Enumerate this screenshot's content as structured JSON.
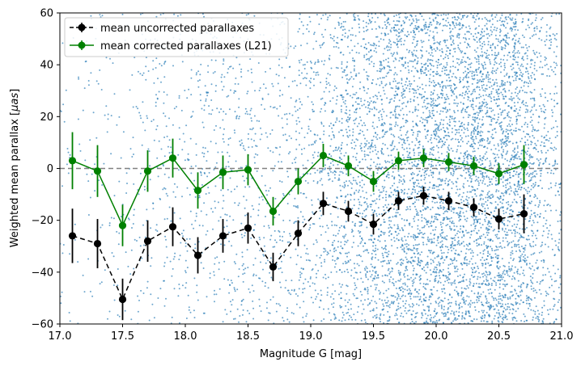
{
  "chart_data": {
    "type": "line",
    "title": "",
    "xlabel": "Magnitude G [mag]",
    "ylabel_prefix": "Weighted mean parallax [",
    "ylabel_unit": "μas",
    "ylabel_suffix": "]",
    "xlim": [
      17.0,
      21.0
    ],
    "ylim": [
      -60,
      60
    ],
    "xticks": [
      17.0,
      17.5,
      18.0,
      18.5,
      19.0,
      19.5,
      20.0,
      20.5,
      21.0
    ],
    "xtick_labels": [
      "17.0",
      "17.5",
      "18.0",
      "18.5",
      "19.0",
      "19.5",
      "20.0",
      "20.5",
      "21.0"
    ],
    "yticks": [
      -60,
      -40,
      -20,
      0,
      20,
      40,
      60
    ],
    "ytick_labels": [
      "−60",
      "−40",
      "−20",
      "0",
      "20",
      "40",
      "60"
    ],
    "reference_line": {
      "y": 0,
      "style": "dashed",
      "color": "#808080"
    },
    "legend_position": "upper-left",
    "x": [
      17.1,
      17.3,
      17.5,
      17.7,
      17.9,
      18.1,
      18.3,
      18.5,
      18.7,
      18.9,
      19.1,
      19.3,
      19.5,
      19.7,
      19.9,
      20.1,
      20.3,
      20.5,
      20.7
    ],
    "series": [
      {
        "name": "mean uncorrected parallaxes",
        "color": "#000000",
        "linestyle": "dashed",
        "values": [
          -26,
          -29,
          -50.5,
          -28,
          -22.5,
          -33.5,
          -26,
          -23,
          -38,
          -25,
          -13.5,
          -16.5,
          -21.5,
          -12.5,
          -10.5,
          -12.5,
          -15,
          -19.5,
          -17.5
        ],
        "errors": [
          10.5,
          9.5,
          8,
          8,
          7.5,
          7,
          6.5,
          6,
          5.5,
          5,
          4.5,
          4,
          4,
          3.5,
          3.5,
          3.5,
          3.5,
          4,
          7.5
        ]
      },
      {
        "name": "mean corrected parallaxes (L21)",
        "color": "#008000",
        "linestyle": "solid",
        "values": [
          3,
          -1,
          -22,
          -1,
          4,
          -8.5,
          -1.5,
          -0.5,
          -16.5,
          -5,
          5,
          1,
          -5,
          3,
          4,
          2.5,
          1,
          -2,
          1.5
        ],
        "errors": [
          11,
          10,
          8,
          8,
          7.5,
          7,
          6.5,
          6,
          5.5,
          5,
          4.5,
          4,
          4,
          3.5,
          3.5,
          3.5,
          3.5,
          4,
          7.5
        ]
      }
    ],
    "scatter": {
      "name": "individual sources",
      "color": "#1f77b4",
      "description_density": "increasing with magnitude, concentrated around G 19.8–20.6"
    }
  }
}
